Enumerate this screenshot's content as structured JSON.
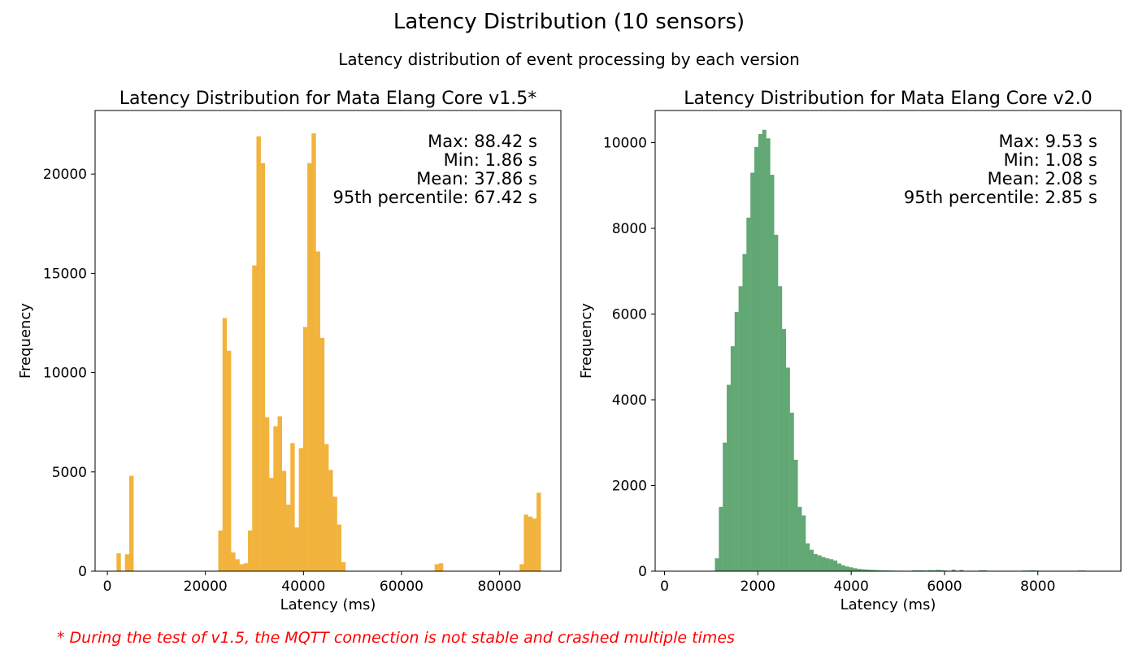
{
  "figure": {
    "title": "Latency Distribution (10 sensors)",
    "subtitle": "Latency distribution of event processing by each version",
    "footnote": "* During the test of v1.5, the MQTT connection is not stable and crashed multiple times"
  },
  "chart_data": [
    {
      "type": "bar",
      "title": "Latency Distribution for Mata Elang Core v1.5*",
      "xlabel": "Latency (ms)",
      "ylabel": "Frequency",
      "xlim": [
        -2500,
        92500
      ],
      "ylim": [
        0,
        23200
      ],
      "xticks": [
        0,
        20000,
        40000,
        60000,
        80000
      ],
      "yticks": [
        0,
        5000,
        10000,
        15000,
        20000
      ],
      "bin_width": 865,
      "color": "#F2B33D",
      "stats": [
        "Max: 88.42 s",
        "Min: 1.86 s",
        "Mean: 37.86 s",
        "95th percentile: 67.42 s"
      ],
      "bins": [
        [
          1860,
          900
        ],
        [
          2725,
          0
        ],
        [
          3590,
          850
        ],
        [
          4455,
          4800
        ],
        [
          22620,
          2050
        ],
        [
          23485,
          12750
        ],
        [
          24350,
          11100
        ],
        [
          25215,
          950
        ],
        [
          26080,
          600
        ],
        [
          26945,
          350
        ],
        [
          27810,
          400
        ],
        [
          28675,
          2050
        ],
        [
          29540,
          15400
        ],
        [
          30405,
          21900
        ],
        [
          31270,
          20550
        ],
        [
          32135,
          7750
        ],
        [
          33000,
          4700
        ],
        [
          33865,
          7300
        ],
        [
          34730,
          7800
        ],
        [
          35595,
          5050
        ],
        [
          36460,
          3350
        ],
        [
          37325,
          6450
        ],
        [
          38190,
          2200
        ],
        [
          39055,
          6200
        ],
        [
          39920,
          12300
        ],
        [
          40785,
          20550
        ],
        [
          41650,
          22050
        ],
        [
          42515,
          16100
        ],
        [
          43380,
          11750
        ],
        [
          44245,
          6400
        ],
        [
          45110,
          5100
        ],
        [
          45975,
          3750
        ],
        [
          46840,
          2350
        ],
        [
          47705,
          450
        ],
        [
          66740,
          350
        ],
        [
          67605,
          400
        ],
        [
          84080,
          350
        ],
        [
          84945,
          2850
        ],
        [
          85810,
          2750
        ],
        [
          86675,
          2650
        ],
        [
          87540,
          3950
        ]
      ]
    },
    {
      "type": "bar",
      "title": "Latency Distribution for Mata Elang Core v2.0",
      "xlabel": "Latency (ms)",
      "ylabel": "Frequency",
      "xlim": [
        -200,
        9780
      ],
      "ylim": [
        0,
        10750
      ],
      "xticks": [
        0,
        2000,
        4000,
        6000,
        8000
      ],
      "yticks": [
        0,
        2000,
        4000,
        6000,
        8000,
        10000
      ],
      "bin_width": 84.5,
      "color": "#62A874",
      "stats": [
        "Max: 9.53 s",
        "Min: 1.08 s",
        "Mean: 2.08 s",
        "95th percentile: 2.85 s"
      ],
      "bins": [
        [
          1080,
          300
        ],
        [
          1164.5,
          1500
        ],
        [
          1249,
          3000
        ],
        [
          1333.5,
          4350
        ],
        [
          1418,
          5250
        ],
        [
          1502.5,
          6050
        ],
        [
          1587,
          6650
        ],
        [
          1671.5,
          7400
        ],
        [
          1756,
          8250
        ],
        [
          1840.5,
          9300
        ],
        [
          1925,
          9900
        ],
        [
          2009.5,
          10200
        ],
        [
          2094,
          10300
        ],
        [
          2178.5,
          10100
        ],
        [
          2263,
          9250
        ],
        [
          2347.5,
          7850
        ],
        [
          2432,
          6650
        ],
        [
          2516.5,
          5650
        ],
        [
          2601,
          4750
        ],
        [
          2685.5,
          3700
        ],
        [
          2770,
          2600
        ],
        [
          2854.5,
          1500
        ],
        [
          2939,
          1300
        ],
        [
          3023.5,
          650
        ],
        [
          3108,
          500
        ],
        [
          3192.5,
          400
        ],
        [
          3277,
          370
        ],
        [
          3361.5,
          330
        ],
        [
          3446,
          300
        ],
        [
          3530.5,
          280
        ],
        [
          3615,
          250
        ],
        [
          3699.5,
          180
        ],
        [
          3784,
          140
        ],
        [
          3868.5,
          110
        ],
        [
          3953,
          90
        ],
        [
          4037.5,
          70
        ],
        [
          4122,
          55
        ],
        [
          4206.5,
          45
        ],
        [
          4291,
          38
        ],
        [
          4375.5,
          32
        ],
        [
          4460,
          28
        ],
        [
          4544.5,
          24
        ],
        [
          4629,
          20
        ],
        [
          4713.5,
          18
        ],
        [
          4798,
          15
        ],
        [
          4882.5,
          13
        ],
        [
          4967,
          11
        ],
        [
          5051.5,
          10
        ],
        [
          5136,
          9
        ],
        [
          5220.5,
          8
        ],
        [
          5305,
          20
        ],
        [
          5389.5,
          18
        ],
        [
          5474,
          20
        ],
        [
          5558.5,
          15
        ],
        [
          5643,
          25
        ],
        [
          5727.5,
          20
        ],
        [
          5812,
          30
        ],
        [
          5896.5,
          25
        ],
        [
          5981,
          15
        ],
        [
          6065.5,
          10
        ],
        [
          6150,
          35
        ],
        [
          6234.5,
          10
        ],
        [
          6319,
          30
        ],
        [
          6403.5,
          8
        ],
        [
          6488,
          8
        ],
        [
          6572.5,
          8
        ],
        [
          6657,
          8
        ],
        [
          6741.5,
          20
        ],
        [
          6826,
          20
        ],
        [
          6910.5,
          8
        ],
        [
          6995,
          8
        ],
        [
          7079.5,
          8
        ],
        [
          7164,
          8
        ],
        [
          7248.5,
          8
        ],
        [
          7333,
          8
        ],
        [
          7417.5,
          8
        ],
        [
          7502,
          8
        ],
        [
          7586.5,
          8
        ],
        [
          7671,
          15
        ],
        [
          7755.5,
          15
        ],
        [
          7840,
          20
        ],
        [
          7924.5,
          15
        ],
        [
          8009,
          8
        ],
        [
          8093.5,
          8
        ],
        [
          8178,
          8
        ],
        [
          8262.5,
          8
        ],
        [
          8347,
          8
        ],
        [
          8431.5,
          8
        ],
        [
          8516,
          8
        ],
        [
          8600.5,
          8
        ],
        [
          8685,
          8
        ],
        [
          8769.5,
          8
        ],
        [
          8854,
          15
        ],
        [
          8938.5,
          15
        ],
        [
          9023,
          8
        ],
        [
          9107.5,
          8
        ],
        [
          9192,
          8
        ],
        [
          9276.5,
          8
        ],
        [
          9361,
          8
        ],
        [
          9445.5,
          8
        ]
      ]
    }
  ]
}
